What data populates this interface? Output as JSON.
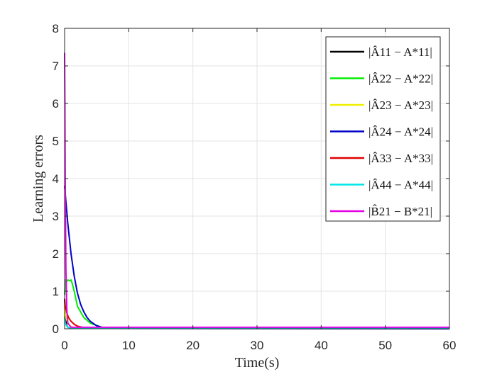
{
  "chart_data": {
    "type": "line",
    "xlabel": "Time(s)",
    "ylabel": "Learning errors",
    "xlim": [
      0,
      60
    ],
    "ylim": [
      0,
      8
    ],
    "xticks": [
      0,
      10,
      20,
      30,
      40,
      50,
      60
    ],
    "yticks": [
      0,
      1,
      2,
      3,
      4,
      5,
      6,
      7,
      8
    ],
    "grid": true,
    "legend_position": "top-right",
    "series": [
      {
        "name": "|Â11 − A*11|",
        "color": "#000000",
        "x": [
          0,
          0.05,
          0.1,
          0.2,
          0.3,
          0.5,
          1,
          2,
          60
        ],
        "y": [
          0.8,
          0.6,
          0.4,
          0.2,
          0.1,
          0.04,
          0.02,
          0.01,
          0.01
        ]
      },
      {
        "name": "|Â22 − A*22|",
        "color": "#00ee00",
        "x": [
          0,
          0.1,
          0.3,
          0.5,
          0.8,
          1.0,
          1.2,
          1.5,
          2,
          3,
          4,
          6,
          60
        ],
        "y": [
          0.9,
          1.3,
          1.25,
          1.3,
          1.28,
          1.3,
          1.2,
          1.0,
          0.6,
          0.3,
          0.15,
          0.03,
          0.01
        ]
      },
      {
        "name": "|Â23 − A*23|",
        "color": "#f0f000",
        "x": [
          0,
          0.1,
          0.3,
          0.6,
          1,
          1.5,
          60
        ],
        "y": [
          0.6,
          0.4,
          0.25,
          0.12,
          0.06,
          0.02,
          0.02
        ]
      },
      {
        "name": "|Â24 − A*24|",
        "color": "#0000c8",
        "x": [
          0,
          0.2,
          0.5,
          1,
          1.5,
          2,
          2.5,
          3,
          3.5,
          4,
          5,
          6,
          7,
          60
        ],
        "y": [
          3.8,
          3.4,
          2.8,
          2.0,
          1.4,
          0.95,
          0.65,
          0.45,
          0.3,
          0.2,
          0.08,
          0.03,
          0.01,
          0.0
        ]
      },
      {
        "name": "|Â33 − A*33|",
        "color": "#e00000",
        "x": [
          0,
          0.1,
          0.3,
          0.6,
          1,
          1.5,
          2,
          3,
          4,
          60
        ],
        "y": [
          0.8,
          0.6,
          0.45,
          0.3,
          0.2,
          0.12,
          0.07,
          0.03,
          0.02,
          0.02
        ]
      },
      {
        "name": "|Â44 − A*44|",
        "color": "#00e6e6",
        "x": [
          0,
          0.1,
          0.3,
          0.5,
          1,
          60
        ],
        "y": [
          0.3,
          0.15,
          0.08,
          0.04,
          0.02,
          0.02
        ]
      },
      {
        "name": "|B̂21 − B*21|",
        "color": "#e600e6",
        "x": [
          0,
          0.05,
          0.1,
          0.2,
          0.35,
          0.5,
          1,
          60
        ],
        "y": [
          7.35,
          6.0,
          4.0,
          1.6,
          0.5,
          0.15,
          0.04,
          0.04
        ]
      }
    ]
  }
}
